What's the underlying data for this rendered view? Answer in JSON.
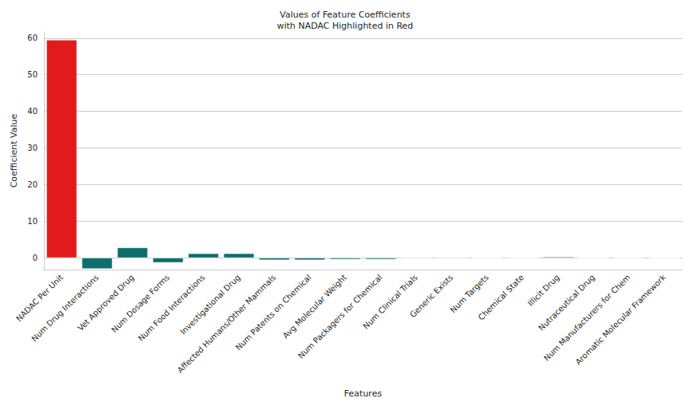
{
  "chart_data": {
    "type": "bar",
    "title": "Values of Feature Coefficients\nwith NADAC Highlighted in Red",
    "x_label": "Features",
    "y_label": "Coefficient Value",
    "categories": [
      "NADAC Per Unit",
      "Num Drug Interactions",
      "Vet Approved Drug",
      "Num Dosage Forms",
      "Num Food Interactions",
      "Investigational Drug",
      "Affected Humans/Other Mammals",
      "Num Patents on Chemical",
      "Avg Molecular Weight",
      "Num Packagers for Chemical",
      "Num Clinical Trials",
      "Generic Exists",
      "Num Targets",
      "Chemical State",
      "Illicit Drug",
      "Nutraceutical Drug",
      "Num Manufacturers for Chem",
      "Aromatic Molecular Framework"
    ],
    "values": [
      59.5,
      -3.0,
      2.8,
      -1.3,
      1.2,
      1.2,
      -0.6,
      -0.6,
      -0.4,
      -0.4,
      -0.15,
      -0.15,
      -0.05,
      0,
      0.3,
      -0.05,
      -0.05,
      -0.05
    ],
    "colors": [
      "#e31a1c",
      "#0e6e6b",
      "#0e6e6b",
      "#0e6e6b",
      "#0e6e6b",
      "#0e6e6b",
      "#0e6e6b",
      "#0e6e6b",
      "#0e6e6b",
      "#0e6e6b",
      "#0e6e6b",
      "#0e6e6b",
      "#0e6e6b",
      "#0e6e6b",
      "#0e6e6b",
      "#0e6e6b",
      "#0e6e6b",
      "#0e6e6b"
    ],
    "ylim": [
      -3.2,
      61.7
    ],
    "yticks": [
      0,
      10,
      20,
      30,
      40,
      50,
      60
    ],
    "grid": true
  }
}
